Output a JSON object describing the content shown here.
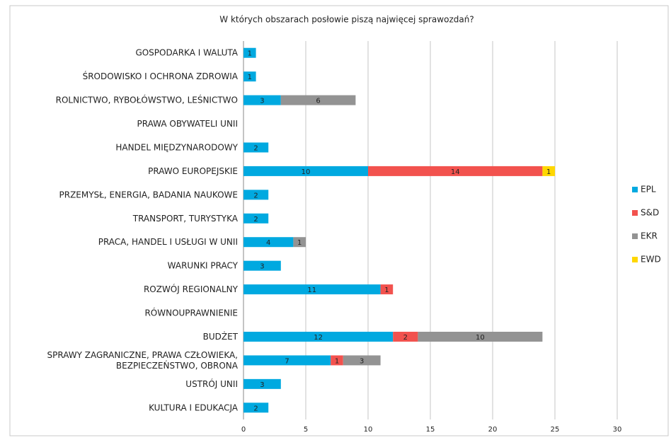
{
  "chart_data": {
    "type": "stacked-barh",
    "title": "W których obszarach posłowie piszą najwięcej sprawozdań?",
    "categories": [
      "GOSPODARKA I WALUTA",
      "ŚRODOWISKO I OCHRONA ZDROWIA",
      "ROLNICTWO, RYBOŁÓWSTWO, LEŚNICTWO",
      "PRAWA OBYWATELI UNII",
      "HANDEL MIĘDZYNARODOWY",
      "PRAWO EUROPEJSKIE",
      "PRZEMYSŁ, ENERGIA, BADANIA NAUKOWE",
      "TRANSPORT, TURYSTYKA",
      "PRACA, HANDEL I USŁUGI W UNII",
      "WARUNKI PRACY",
      "ROZWÓJ REGIONALNY",
      "RÓWNOUPRAWNIENIE",
      "BUDŻET",
      "SPRAWY ZAGRANICZNE, PRAWA CZŁOWIEKA,\nBEZPIECZEŃSTWO, OBRONA",
      "USTRÓJ UNII",
      "KULTURA I EDUKACJA"
    ],
    "series": [
      {
        "name": "EPL",
        "color": "#00a9e0",
        "values": [
          1,
          1,
          3,
          null,
          2,
          10,
          2,
          2,
          4,
          3,
          11,
          null,
          12,
          7,
          3,
          2
        ]
      },
      {
        "name": "S&D",
        "color": "#f2524e",
        "values": [
          null,
          null,
          null,
          null,
          null,
          14,
          null,
          null,
          null,
          null,
          1,
          null,
          2,
          1,
          null,
          null
        ]
      },
      {
        "name": "EKR",
        "color": "#939393",
        "values": [
          null,
          null,
          6,
          null,
          null,
          null,
          null,
          null,
          1,
          null,
          null,
          null,
          10,
          3,
          null,
          null
        ]
      },
      {
        "name": "EWD",
        "color": "#ffd700",
        "values": [
          null,
          null,
          null,
          null,
          null,
          1,
          null,
          null,
          null,
          null,
          null,
          null,
          null,
          null,
          null,
          null
        ]
      }
    ],
    "xlim": [
      0,
      30
    ],
    "xticks": [
      0,
      5,
      10,
      15,
      20,
      25,
      30
    ],
    "grid": true,
    "legend": "right"
  }
}
